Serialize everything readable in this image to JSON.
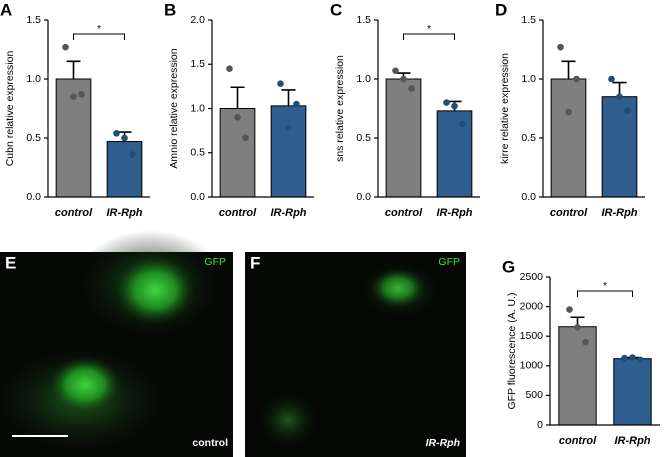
{
  "chart_data": [
    {
      "type": "bar",
      "panel": "A",
      "ylabel": "Cubn relative expression",
      "categories": [
        "control",
        "IR-Rph"
      ],
      "values": [
        1.0,
        0.47
      ],
      "errors": [
        0.15,
        0.08
      ],
      "points": [
        [
          1.27,
          0.87,
          0.85
        ],
        [
          0.54,
          0.36,
          0.5
        ]
      ],
      "colors": [
        "#7f7f7f",
        "#2f5f8f"
      ],
      "point_colors": [
        "#555555",
        "#1f4e79"
      ],
      "ylim": [
        0,
        1.5
      ],
      "yticks": [
        {
          "value": 0,
          "label": "0.0"
        },
        0.5,
        {
          "value": 1,
          "label": "1.0"
        },
        1.5
      ],
      "annotation": "*"
    },
    {
      "type": "bar",
      "panel": "B",
      "ylabel": "Amnio relative expression",
      "categories": [
        "control",
        "IR-Rph"
      ],
      "values": [
        1.0,
        1.03
      ],
      "errors": [
        0.24,
        0.18
      ],
      "points": [
        [
          1.45,
          0.67,
          0.9
        ],
        [
          1.28,
          1.05,
          0.78
        ]
      ],
      "colors": [
        "#7f7f7f",
        "#2f5f8f"
      ],
      "point_colors": [
        "#555555",
        "#1f4e79"
      ],
      "ylim": [
        0,
        2
      ],
      "yticks": [
        {
          "value": 0,
          "label": "0.0"
        },
        0.5,
        {
          "value": 1,
          "label": "1.0"
        },
        1.5,
        {
          "value": 2,
          "label": "2.0"
        }
      ]
    },
    {
      "type": "bar",
      "panel": "C",
      "ylabel": "sns relative expression",
      "categories": [
        "control",
        "IR-Rph"
      ],
      "values": [
        1.0,
        0.73
      ],
      "errors": [
        0.05,
        0.08
      ],
      "points": [
        [
          1.07,
          0.92,
          1.0
        ],
        [
          0.8,
          0.62,
          0.77
        ]
      ],
      "colors": [
        "#7f7f7f",
        "#2f5f8f"
      ],
      "point_colors": [
        "#555555",
        "#1f4e79"
      ],
      "ylim": [
        0,
        1.5
      ],
      "yticks": [
        {
          "value": 0,
          "label": "0.0"
        },
        0.5,
        {
          "value": 1,
          "label": "1.0"
        },
        1.5
      ],
      "annotation": "*"
    },
    {
      "type": "bar",
      "panel": "D",
      "ylabel": "kirre relative expression",
      "categories": [
        "control",
        "IR-Rph"
      ],
      "values": [
        1.0,
        0.85
      ],
      "errors": [
        0.15,
        0.12
      ],
      "points": [
        [
          1.27,
          1.0,
          0.72
        ],
        [
          1.0,
          0.73,
          0.85
        ]
      ],
      "colors": [
        "#7f7f7f",
        "#2f5f8f"
      ],
      "point_colors": [
        "#555555",
        "#1f4e79"
      ],
      "ylim": [
        0,
        1.5
      ],
      "yticks": [
        {
          "value": 0,
          "label": "0.0"
        },
        0.5,
        {
          "value": 1,
          "label": "1.0"
        },
        1.5
      ]
    },
    {
      "type": "bar",
      "panel": "G",
      "ylabel": "GFP fluorescence (A. U.)",
      "categories": [
        "control",
        "IR-Rph"
      ],
      "values": [
        1660,
        1120
      ],
      "errors": [
        160,
        20
      ],
      "points": [
        [
          1950,
          1400,
          1650
        ],
        [
          1130,
          1100,
          1140
        ]
      ],
      "colors": [
        "#7f7f7f",
        "#2f5f8f"
      ],
      "point_colors": [
        "#555555",
        "#1f4e79"
      ],
      "ylim": [
        0,
        2500
      ],
      "yticks": [
        0,
        500,
        1000,
        1500,
        2000,
        2500
      ],
      "annotation": "*"
    }
  ],
  "images": [
    {
      "panel": "E",
      "channel": "GFP",
      "label": "control"
    },
    {
      "panel": "F",
      "channel": "GFP",
      "label": "IR-Rph"
    }
  ]
}
